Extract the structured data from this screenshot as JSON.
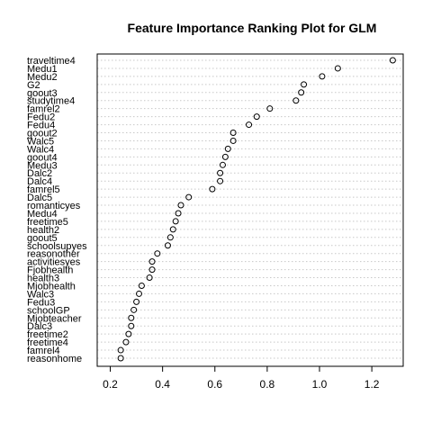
{
  "chart_data": {
    "type": "scatter",
    "title": "Feature Importance Ranking Plot for GLM",
    "xlabel": "",
    "ylabel": "",
    "xlim": [
      0.2,
      1.3
    ],
    "x_ticks": [
      0.2,
      0.4,
      0.6,
      0.8,
      1.0,
      1.2
    ],
    "x_tick_labels": [
      "0.2",
      "0.4",
      "0.6",
      "0.8",
      "1.0",
      "1.2"
    ],
    "grid": "horizontal dotted",
    "categories": [
      "traveltime4",
      "Medu1",
      "Medu2",
      "G2",
      "goout3",
      "studytime4",
      "famrel2",
      "Fedu2",
      "Fedu4",
      "goout2",
      "Walc5",
      "Walc4",
      "goout4",
      "Medu3",
      "Dalc2",
      "Dalc4",
      "famrel5",
      "Dalc5",
      "romanticyes",
      "Medu4",
      "freetime5",
      "health2",
      "goout5",
      "schoolsupyes",
      "reasonother",
      "activitiesyes",
      "Fjobhealth",
      "health3",
      "Mjobhealth",
      "Walc3",
      "Fedu3",
      "schoolGP",
      "Mjobteacher",
      "Dalc3",
      "freetime2",
      "freetime4",
      "famrel4",
      "reasonhome"
    ],
    "values": [
      1.28,
      1.07,
      1.01,
      0.94,
      0.93,
      0.91,
      0.81,
      0.76,
      0.73,
      0.67,
      0.67,
      0.65,
      0.64,
      0.63,
      0.62,
      0.62,
      0.59,
      0.5,
      0.47,
      0.46,
      0.45,
      0.44,
      0.43,
      0.42,
      0.38,
      0.36,
      0.36,
      0.35,
      0.32,
      0.31,
      0.3,
      0.29,
      0.28,
      0.28,
      0.27,
      0.26,
      0.24,
      0.24
    ]
  }
}
